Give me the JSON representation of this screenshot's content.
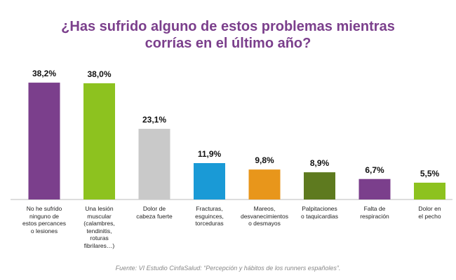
{
  "chart_data": {
    "type": "bar",
    "title": "¿Has sufrido alguno de estos problemas mientras\ncorrías en el último año?",
    "categories": [
      "No he sufrido\nninguno de\nestos percances\no lesiones",
      "Una lesión\nmuscular\n(calambres,\ntendinitis,\nroturas\nfibrilares…)",
      "Dolor de\ncabeza fuerte",
      "Fracturas,\nesguinces,\ntorceduras",
      "Mareos,\ndesvanecimientos\no desmayos",
      "Palpitaciones\no taquicardias",
      "Falta de\nrespiración",
      "Dolor en\nel pecho"
    ],
    "values": [
      38.2,
      38.0,
      23.1,
      11.9,
      9.8,
      8.9,
      6.7,
      5.5
    ],
    "value_labels": [
      "38,2%",
      "38,0%",
      "23,1%",
      "11,9%",
      "9,8%",
      "8,9%",
      "6,7%",
      "5,5%"
    ],
    "colors": [
      "#7b3f8c",
      "#8dc21f",
      "#c9c9c9",
      "#1a9ad6",
      "#e8961b",
      "#5e7a1f",
      "#7b3f8c",
      "#8dc21f"
    ],
    "source": "Fuente: VI Estudio CinfaSalud: “Percepción y hábitos de los runners españoles”."
  }
}
